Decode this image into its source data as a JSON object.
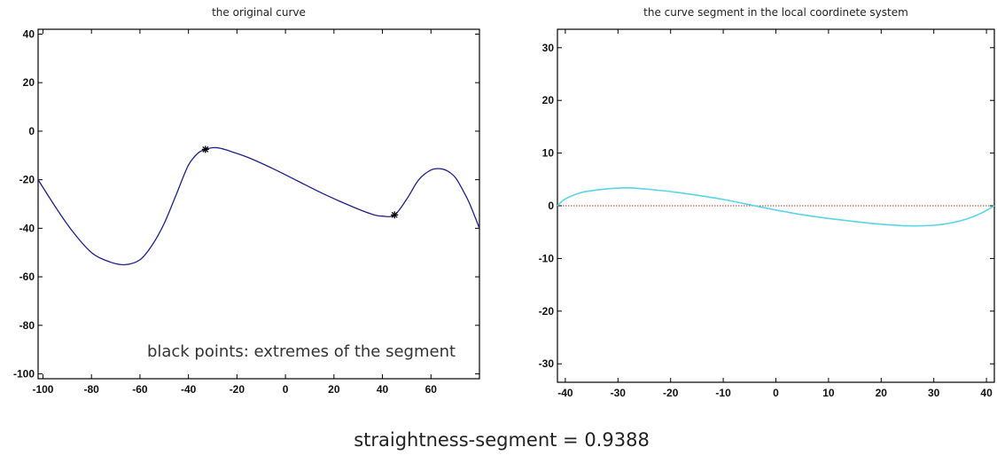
{
  "chart_data": [
    {
      "type": "line",
      "title": "the original curve",
      "xlabel": "",
      "ylabel": "",
      "xlim": [
        -102,
        80
      ],
      "ylim": [
        -102,
        42
      ],
      "xticks": [
        -100,
        -80,
        -60,
        -40,
        -20,
        0,
        20,
        40,
        60
      ],
      "yticks": [
        40,
        20,
        0,
        -20,
        -40,
        -60,
        -80,
        -100
      ],
      "grid": false,
      "series": [
        {
          "color": "#1f1f8f",
          "x": [
            -102,
            -95,
            -88,
            -80,
            -72,
            -66,
            -60,
            -55,
            -50,
            -45,
            -40,
            -36,
            -33,
            -30,
            -27,
            -22,
            -15,
            -5,
            5,
            15,
            25,
            35,
            40,
            45,
            50,
            55,
            60,
            64,
            67,
            70,
            73,
            76,
            80
          ],
          "y": [
            -20,
            -31,
            -41,
            -50,
            -54,
            -55,
            -53,
            -47,
            -38,
            -26,
            -14,
            -9,
            -7.5,
            -6.8,
            -7,
            -8.5,
            -11,
            -15.5,
            -20.5,
            -25.5,
            -30,
            -34,
            -35,
            -34.5,
            -28,
            -20,
            -16,
            -15.5,
            -16.5,
            -19,
            -24,
            -30,
            -40
          ]
        }
      ],
      "markers": [
        {
          "x": -33,
          "y": -7.5,
          "symbol": "*"
        },
        {
          "x": 45,
          "y": -34.5,
          "symbol": "*"
        }
      ],
      "annotations": [
        "black points: extremes of the segment"
      ]
    },
    {
      "type": "line",
      "title": "the curve segment in the local coordinete system",
      "xlabel": "",
      "ylabel": "",
      "xlim": [
        -41.5,
        41.5
      ],
      "ylim": [
        -33.5,
        33.5
      ],
      "xticks": [
        -40,
        -30,
        -20,
        -10,
        0,
        10,
        20,
        30,
        40
      ],
      "yticks": [
        30,
        20,
        10,
        0,
        -10,
        -20,
        -30
      ],
      "grid": false,
      "series": [
        {
          "color": "#59d4e8",
          "x": [
            -41.5,
            -40,
            -37,
            -34,
            -31,
            -28,
            -25,
            -20,
            -15,
            -10,
            -5,
            0,
            5,
            10,
            15,
            20,
            25,
            30,
            33,
            36,
            39,
            41.5
          ],
          "y": [
            0,
            1.3,
            2.5,
            3.0,
            3.3,
            3.4,
            3.2,
            2.7,
            2.0,
            1.2,
            0.2,
            -0.8,
            -1.7,
            -2.4,
            -3.0,
            -3.5,
            -3.8,
            -3.7,
            -3.3,
            -2.6,
            -1.4,
            0
          ]
        }
      ],
      "reference_line": {
        "y": 0,
        "color": "#b03a2e",
        "style": "dotted"
      }
    }
  ],
  "footer": {
    "text": "straightness-segment = 0.9388"
  }
}
